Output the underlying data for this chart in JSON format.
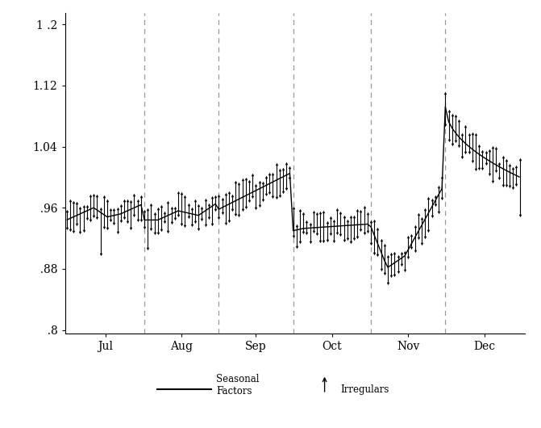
{
  "background_color": "#ffffff",
  "line_color": "#000000",
  "dashed_vline_color": "#999999",
  "month_labels": [
    "Jul",
    "Aug",
    "Sep",
    "Oct",
    "Nov",
    "Dec"
  ],
  "ylim": [
    0.795,
    1.215
  ],
  "yticks": [
    0.8,
    0.88,
    0.96,
    1.04,
    1.12,
    1.2
  ],
  "ytick_labels": [
    "  .8",
    "  .88",
    "  .96",
    "1.04",
    "1.12",
    "1 .2"
  ],
  "n_jul": 23,
  "n_aug": 22,
  "n_sep": 22,
  "n_oct": 23,
  "n_nov": 22,
  "n_dec": 23
}
